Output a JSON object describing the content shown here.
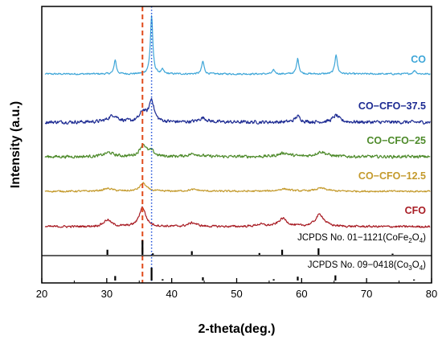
{
  "chart_data": {
    "type": "line",
    "xlabel": "2-theta(deg.)",
    "ylabel": "Intensity (a.u.)",
    "xlim": [
      20,
      80
    ],
    "x_ticks": [
      20,
      30,
      40,
      50,
      60,
      70,
      80
    ],
    "y_ticks_shown": false,
    "grid": false,
    "reference_lines": [
      {
        "x": 35.5,
        "style": "dashed",
        "color": "#e04a1a"
      },
      {
        "x": 36.9,
        "style": "dotted",
        "color": "#2050d8"
      }
    ],
    "series": [
      {
        "name": "CO",
        "color": "#3ea6d8",
        "baseline": 0.0,
        "noise": 0.25,
        "peaks": [
          {
            "x": 31.3,
            "height": 3.2,
            "width": 0.2
          },
          {
            "x": 36.9,
            "height": 13.0,
            "width": 0.22
          },
          {
            "x": 38.6,
            "height": 0.9,
            "width": 0.2
          },
          {
            "x": 44.8,
            "height": 2.8,
            "width": 0.22
          },
          {
            "x": 55.7,
            "height": 0.8,
            "width": 0.25
          },
          {
            "x": 59.4,
            "height": 3.4,
            "width": 0.22
          },
          {
            "x": 65.3,
            "height": 4.4,
            "width": 0.22
          },
          {
            "x": 77.4,
            "height": 0.8,
            "width": 0.25
          }
        ]
      },
      {
        "name": "CO−CFO−37.5",
        "color": "#1c2a92",
        "baseline": 0.0,
        "noise": 0.55,
        "peaks": [
          {
            "x": 31.0,
            "height": 1.6,
            "width": 0.9
          },
          {
            "x": 35.6,
            "height": 2.4,
            "width": 0.6
          },
          {
            "x": 36.9,
            "height": 5.2,
            "width": 0.45
          },
          {
            "x": 44.8,
            "height": 1.0,
            "width": 0.7
          },
          {
            "x": 59.4,
            "height": 1.4,
            "width": 0.5
          },
          {
            "x": 65.3,
            "height": 1.6,
            "width": 0.6
          }
        ]
      },
      {
        "name": "CO−CFO−25",
        "color": "#4d8a2a",
        "baseline": 0.0,
        "noise": 0.5,
        "peaks": [
          {
            "x": 30.3,
            "height": 1.0,
            "width": 0.9
          },
          {
            "x": 35.6,
            "height": 3.0,
            "width": 0.6
          },
          {
            "x": 36.9,
            "height": 1.2,
            "width": 0.5
          },
          {
            "x": 43.4,
            "height": 0.7,
            "width": 1.0
          },
          {
            "x": 57.3,
            "height": 0.9,
            "width": 1.0
          },
          {
            "x": 63.0,
            "height": 1.2,
            "width": 1.0
          }
        ]
      },
      {
        "name": "CO−CFO−12.5",
        "color": "#c49a2c",
        "baseline": 0.0,
        "noise": 0.35,
        "peaks": [
          {
            "x": 30.2,
            "height": 0.8,
            "width": 0.9
          },
          {
            "x": 35.6,
            "height": 2.4,
            "width": 0.6
          },
          {
            "x": 43.4,
            "height": 0.5,
            "width": 1.0
          },
          {
            "x": 57.3,
            "height": 0.7,
            "width": 1.0
          },
          {
            "x": 63.0,
            "height": 0.9,
            "width": 1.0
          }
        ]
      },
      {
        "name": "CFO",
        "color": "#a81c24",
        "baseline": 0.0,
        "noise": 0.35,
        "peaks": [
          {
            "x": 30.1,
            "height": 1.6,
            "width": 0.7
          },
          {
            "x": 35.5,
            "height": 4.6,
            "width": 0.6
          },
          {
            "x": 43.2,
            "height": 0.9,
            "width": 0.8
          },
          {
            "x": 53.6,
            "height": 0.5,
            "width": 0.8
          },
          {
            "x": 57.1,
            "height": 1.9,
            "width": 0.8
          },
          {
            "x": 62.8,
            "height": 2.9,
            "width": 0.8
          }
        ]
      }
    ],
    "references": [
      {
        "label_prefix": "JCPDS No. 01−1121(CoFe",
        "label_sub1": "2",
        "label_mid": "O",
        "label_sub2": "4",
        "label_suffix": ")",
        "sticks": [
          {
            "x": 30.1,
            "intensity": 0.35
          },
          {
            "x": 35.5,
            "intensity": 1.0
          },
          {
            "x": 37.1,
            "intensity": 0.1
          },
          {
            "x": 43.1,
            "intensity": 0.25
          },
          {
            "x": 53.5,
            "intensity": 0.12
          },
          {
            "x": 57.0,
            "intensity": 0.35
          },
          {
            "x": 62.6,
            "intensity": 0.45
          },
          {
            "x": 74.0,
            "intensity": 0.08
          }
        ]
      },
      {
        "label_prefix": "JCPDS No. 09−0418(Co",
        "label_sub1": "3",
        "label_mid": "O",
        "label_sub2": "4",
        "label_suffix": ")",
        "sticks": [
          {
            "x": 31.3,
            "intensity": 0.35
          },
          {
            "x": 36.9,
            "intensity": 1.0
          },
          {
            "x": 38.6,
            "intensity": 0.1
          },
          {
            "x": 44.8,
            "intensity": 0.25
          },
          {
            "x": 55.7,
            "intensity": 0.1
          },
          {
            "x": 59.4,
            "intensity": 0.3
          },
          {
            "x": 65.2,
            "intensity": 0.4
          },
          {
            "x": 77.3,
            "intensity": 0.08
          }
        ]
      }
    ]
  }
}
